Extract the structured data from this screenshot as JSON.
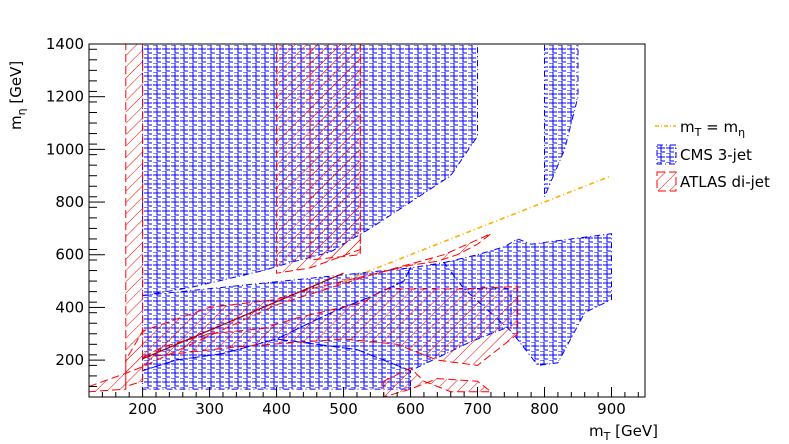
{
  "chart_data": {
    "type": "area",
    "xlabel": "m_T [GeV]",
    "xlabel_main": "m",
    "xlabel_sub": "T",
    "xlabel_unit": " [GeV]",
    "ylabel": "m_η [GeV]",
    "ylabel_main": "m",
    "ylabel_sub": "η",
    "ylabel_unit": " [GeV]",
    "xlim": [
      120,
      950
    ],
    "ylim": [
      60,
      1400
    ],
    "x_ticks": [
      200,
      300,
      400,
      500,
      600,
      700,
      800,
      900
    ],
    "y_ticks": [
      200,
      400,
      600,
      800,
      1000,
      1200,
      1400
    ],
    "grid": false,
    "legend_position": "right",
    "colors": {
      "cms": "#0000ff",
      "atlas": "#ff0000",
      "line": "#ffb000",
      "diag": "#b00000"
    },
    "series": [
      {
        "name": "m_T = m_η",
        "legend_main": "m",
        "legend_sub1": "T",
        "legend_mid": " = m",
        "legend_sub2": "η",
        "kind": "line",
        "points": [
          [
            500,
            500
          ],
          [
            900,
            900
          ]
        ]
      },
      {
        "name": "CMS 3-jet",
        "kind": "hatch",
        "regions": [
          [
            [
              200,
              1400
            ],
            [
              700,
              1400
            ],
            [
              700,
              1050
            ],
            [
              660,
              900
            ],
            [
              600,
              800
            ],
            [
              540,
              700
            ],
            [
              480,
              610
            ],
            [
              420,
              570
            ],
            [
              380,
              540
            ],
            [
              270,
              475
            ],
            [
              200,
              445
            ]
          ],
          [
            [
              200,
              445
            ],
            [
              600,
              550
            ],
            [
              590,
              500
            ],
            [
              540,
              440
            ],
            [
              490,
              390
            ],
            [
              440,
              330
            ],
            [
              400,
              280
            ],
            [
              320,
              225
            ],
            [
              250,
              200
            ],
            [
              200,
              160
            ]
          ],
          [
            [
              200,
              160
            ],
            [
              250,
              200
            ],
            [
              320,
              225
            ],
            [
              400,
              280
            ],
            [
              520,
              240
            ],
            [
              560,
              200
            ],
            [
              600,
              160
            ],
            [
              600,
              90
            ],
            [
              200,
              90
            ]
          ],
          [
            [
              680,
              470
            ],
            [
              750,
              470
            ],
            [
              750,
              330
            ],
            [
              690,
              270
            ],
            [
              600,
              160
            ],
            [
              560,
              200
            ],
            [
              520,
              240
            ],
            [
              400,
              280
            ],
            [
              440,
              330
            ],
            [
              490,
              390
            ],
            [
              540,
              440
            ],
            [
              590,
              500
            ],
            [
              600,
              550
            ],
            [
              650,
              570
            ]
          ],
          [
            [
              650,
              570
            ],
            [
              700,
              600
            ],
            [
              740,
              630
            ],
            [
              760,
              660
            ],
            [
              780,
              640
            ],
            [
              900,
              680
            ],
            [
              900,
              430
            ],
            [
              860,
              380
            ],
            [
              820,
              190
            ],
            [
              790,
              180
            ],
            [
              750,
              310
            ],
            [
              680,
              470
            ]
          ],
          [
            [
              800,
              1400
            ],
            [
              850,
              1400
            ],
            [
              850,
              1200
            ],
            [
              830,
              1000
            ],
            [
              800,
              820
            ]
          ]
        ]
      },
      {
        "name": "ATLAS di-jet",
        "kind": "hatch",
        "regions": [
          [
            [
              175,
              1400
            ],
            [
              200,
              1400
            ],
            [
              200,
              120
            ],
            [
              175,
              100
            ]
          ],
          [
            [
              120,
              100
            ],
            [
              175,
              150
            ],
            [
              200,
              175
            ],
            [
              400,
              410
            ],
            [
              550,
              530
            ],
            [
              650,
              600
            ],
            [
              720,
              680
            ],
            [
              700,
              640
            ],
            [
              670,
              600
            ],
            [
              640,
              575
            ],
            [
              600,
              560
            ],
            [
              550,
              530
            ],
            [
              450,
              470
            ],
            [
              400,
              430
            ],
            [
              300,
              400
            ],
            [
              200,
              310
            ],
            [
              175,
              200
            ],
            [
              175,
              90
            ],
            [
              120,
              80
            ]
          ],
          [
            [
              400,
              1400
            ],
            [
              525,
              1400
            ],
            [
              525,
              620
            ],
            [
              450,
              550
            ],
            [
              400,
              530
            ]
          ],
          [
            [
              450,
              1400
            ],
            [
              525,
              1400
            ],
            [
              525,
              600
            ],
            [
              450,
              580
            ]
          ],
          [
            [
              200,
              210
            ],
            [
              340,
              250
            ],
            [
              500,
              280
            ],
            [
              580,
              260
            ],
            [
              640,
              200
            ],
            [
              700,
              180
            ],
            [
              760,
              300
            ],
            [
              760,
              480
            ],
            [
              680,
              470
            ],
            [
              560,
              470
            ],
            [
              530,
              420
            ],
            [
              430,
              360
            ],
            [
              380,
              320
            ],
            [
              300,
              300
            ],
            [
              230,
              250
            ]
          ],
          [
            [
              560,
              120
            ],
            [
              600,
              170
            ],
            [
              620,
              120
            ],
            [
              660,
              80
            ],
            [
              720,
              80
            ],
            [
              700,
              120
            ],
            [
              640,
              130
            ],
            [
              600,
              90
            ],
            [
              560,
              60
            ]
          ]
        ]
      }
    ]
  }
}
